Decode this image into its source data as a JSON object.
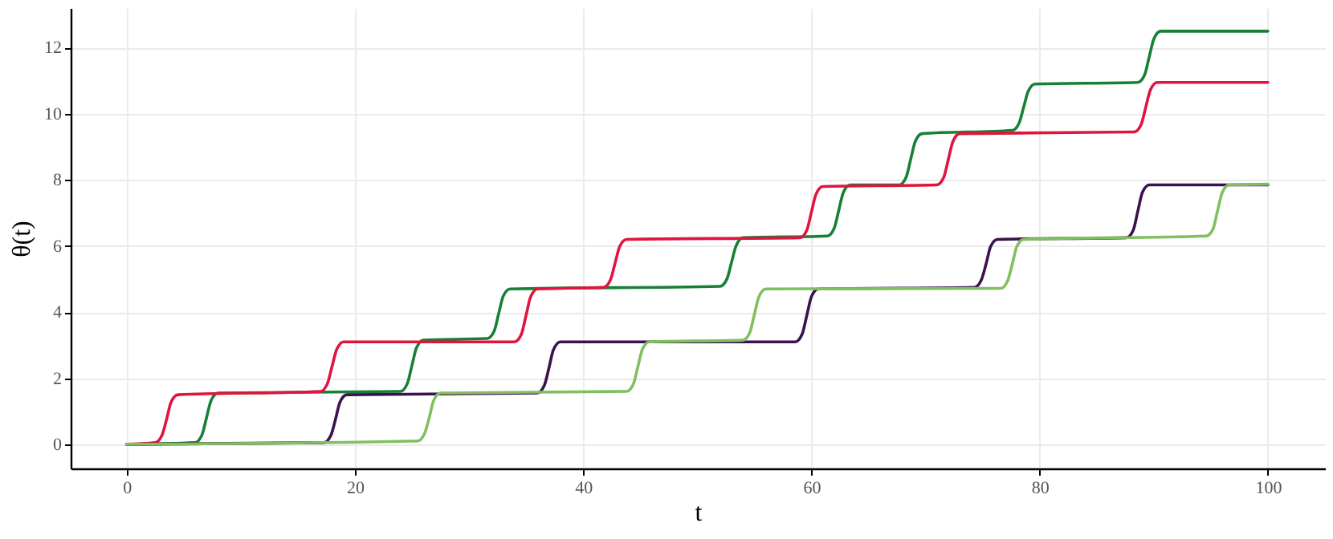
{
  "chart_data": {
    "type": "line",
    "xlabel": "t",
    "ylabel": "θ(t)",
    "xlim": [
      -4.9,
      105
    ],
    "ylim": [
      -0.73,
      13.2
    ],
    "xticks": [
      0,
      20,
      40,
      60,
      80,
      100
    ],
    "yticks": [
      0,
      2,
      4,
      6,
      8,
      10,
      12
    ],
    "grid": true,
    "line_style": "solid",
    "series": [
      {
        "color": "#178035",
        "x": [
          0,
          6,
          6.6,
          7,
          7.4,
          8,
          24,
          24.6,
          25,
          25.4,
          26,
          31.6,
          32.2,
          32.6,
          33,
          33.6,
          52,
          52.6,
          53,
          53.4,
          54,
          61.4,
          62,
          62.4,
          62.8,
          63.4,
          67.7,
          68.3,
          68.7,
          69.1,
          69.7,
          77.6,
          78.2,
          78.6,
          79,
          79.6,
          88.6,
          89.2,
          89.6,
          90,
          90.6,
          100
        ],
        "values": [
          0,
          0.05,
          0.28,
          0.8,
          1.32,
          1.55,
          1.6,
          1.84,
          2.38,
          2.92,
          3.15,
          3.2,
          3.42,
          3.95,
          4.48,
          4.7,
          4.78,
          5.0,
          5.5,
          6.0,
          6.25,
          6.3,
          6.54,
          7.08,
          7.62,
          7.85,
          7.85,
          8.08,
          8.62,
          9.16,
          9.4,
          9.5,
          9.72,
          10.2,
          10.68,
          10.9,
          10.95,
          11.18,
          11.72,
          12.26,
          12.5,
          12.5
        ]
      },
      {
        "color": "#e0143c",
        "x": [
          0,
          2.5,
          3.1,
          3.5,
          3.9,
          4.5,
          17,
          17.6,
          18,
          18.4,
          19,
          34,
          34.6,
          35,
          35.4,
          36,
          41.8,
          42.4,
          42.8,
          43.2,
          43.8,
          59,
          59.6,
          60,
          60.4,
          61,
          71,
          71.6,
          72,
          72.4,
          73,
          88.3,
          88.9,
          89.3,
          89.7,
          90.3,
          100
        ],
        "values": [
          0,
          0.05,
          0.27,
          0.75,
          1.28,
          1.5,
          1.6,
          1.84,
          2.35,
          2.86,
          3.1,
          3.1,
          3.34,
          3.9,
          4.46,
          4.7,
          4.75,
          4.98,
          5.48,
          5.98,
          6.2,
          6.25,
          6.48,
          7.02,
          7.56,
          7.8,
          7.85,
          8.08,
          8.62,
          9.16,
          9.4,
          9.45,
          9.68,
          10.2,
          10.72,
          10.95,
          10.95
        ]
      },
      {
        "color": "#3b1150",
        "x": [
          0,
          17.3,
          17.9,
          18.3,
          18.7,
          19.3,
          36,
          36.6,
          37,
          37.4,
          38,
          58.6,
          59.2,
          59.6,
          60,
          60.6,
          74.3,
          74.9,
          75.3,
          75.7,
          76.3,
          87.6,
          88.2,
          88.6,
          89,
          89.6,
          100
        ],
        "values": [
          0,
          0.05,
          0.27,
          0.75,
          1.28,
          1.5,
          1.55,
          1.78,
          2.3,
          2.86,
          3.1,
          3.1,
          3.34,
          3.9,
          4.46,
          4.7,
          4.75,
          4.98,
          5.45,
          5.98,
          6.2,
          6.25,
          6.48,
          7.05,
          7.62,
          7.85,
          7.85
        ]
      },
      {
        "color": "#80bf60",
        "x": [
          0,
          25.5,
          26.1,
          26.5,
          26.9,
          27.5,
          43.8,
          44.4,
          44.8,
          45.2,
          45.8,
          54,
          54.6,
          55,
          55.4,
          56,
          76.6,
          77.2,
          77.6,
          78,
          78.6,
          94.6,
          95.2,
          95.6,
          96,
          96.6,
          100
        ],
        "values": [
          0,
          0.1,
          0.32,
          0.78,
          1.32,
          1.55,
          1.6,
          1.82,
          2.35,
          2.88,
          3.1,
          3.15,
          3.38,
          3.92,
          4.46,
          4.7,
          4.72,
          4.95,
          5.45,
          5.98,
          6.2,
          6.3,
          6.52,
          7.08,
          7.62,
          7.85,
          7.87
        ]
      }
    ]
  }
}
